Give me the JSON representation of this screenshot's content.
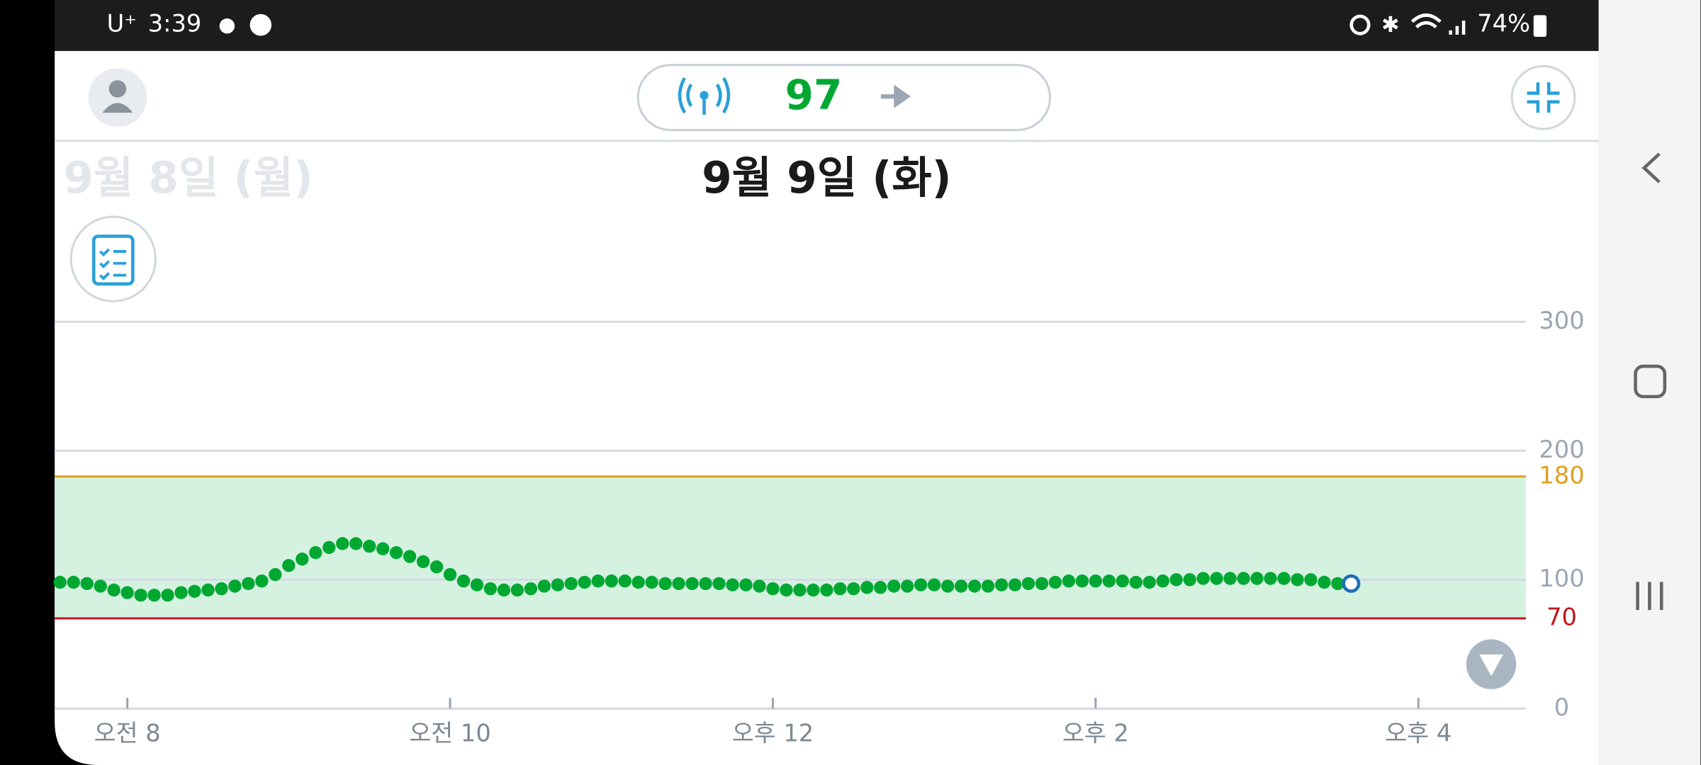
{
  "status_bar": {
    "carrier": "U⁺",
    "time": "3:39",
    "battery": "74%"
  },
  "header": {
    "current_value": 97
  },
  "dates": {
    "previous": "9월 8일 (월)",
    "current": "9월 9일 (화)"
  },
  "chart_data": {
    "type": "scatter",
    "x": [
      455,
      460,
      465,
      470,
      475,
      480,
      485,
      490,
      495,
      500,
      505,
      510,
      515,
      520,
      525,
      530,
      535,
      540,
      545,
      550,
      555,
      560,
      565,
      570,
      575,
      580,
      585,
      590,
      595,
      600,
      605,
      610,
      615,
      620,
      625,
      630,
      635,
      640,
      645,
      650,
      655,
      660,
      665,
      670,
      675,
      680,
      685,
      690,
      695,
      700,
      705,
      710,
      715,
      720,
      725,
      730,
      735,
      740,
      745,
      750,
      755,
      760,
      765,
      770,
      775,
      780,
      785,
      790,
      795,
      800,
      805,
      810,
      815,
      820,
      825,
      830,
      835,
      840,
      845,
      850,
      855,
      860,
      865,
      870,
      875,
      880,
      885,
      890,
      895,
      900,
      905,
      910,
      915,
      920,
      925,
      930,
      935
    ],
    "values": [
      98,
      98,
      97,
      95,
      92,
      90,
      88,
      88,
      88,
      90,
      91,
      92,
      93,
      95,
      97,
      99,
      104,
      111,
      116,
      121,
      125,
      128,
      128,
      126,
      124,
      121,
      118,
      114,
      110,
      104,
      99,
      96,
      93,
      92,
      92,
      93,
      95,
      96,
      97,
      98,
      99,
      99,
      99,
      98,
      98,
      97,
      97,
      97,
      97,
      97,
      96,
      96,
      95,
      93,
      92,
      92,
      92,
      92,
      93,
      93,
      94,
      94,
      95,
      95,
      96,
      96,
      95,
      95,
      95,
      95,
      96,
      96,
      97,
      97,
      98,
      99,
      99,
      99,
      99,
      99,
      98,
      98,
      99,
      100,
      100,
      101,
      101,
      101,
      101,
      101,
      101,
      101,
      100,
      100,
      98,
      97,
      97
    ],
    "color": "#00a832",
    "xlim": [
      453,
      1000
    ],
    "xticks": [
      {
        "value": 480,
        "label": "오전 8"
      },
      {
        "value": 600,
        "label": "오전 10"
      },
      {
        "value": 720,
        "label": "오후 12"
      },
      {
        "value": 840,
        "label": "오후 2"
      },
      {
        "value": 960,
        "label": "오후 4"
      }
    ],
    "ylim": [
      0,
      300
    ],
    "yticks": [
      0,
      100,
      200,
      300
    ],
    "grid": true,
    "target_range": {
      "low": 70,
      "high": 180,
      "fill": "#d5f2e1",
      "low_color": "#c0161b",
      "high_color": "#e0a020"
    }
  }
}
